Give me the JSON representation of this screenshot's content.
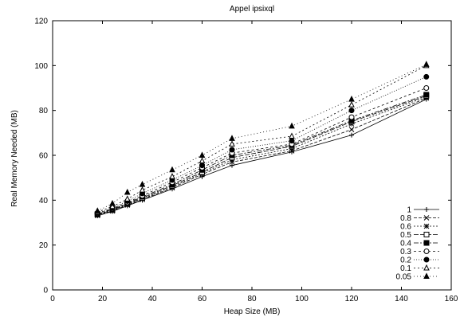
{
  "chart_data": {
    "type": "line",
    "title": "Appel ipsixql",
    "xlabel": "Heap Size (MB)",
    "ylabel": "Real Memory Needed (MB)",
    "xlim": [
      0,
      160
    ],
    "ylim": [
      0,
      120
    ],
    "xticks": [
      0,
      20,
      40,
      60,
      80,
      100,
      120,
      140,
      160
    ],
    "yticks": [
      0,
      20,
      40,
      60,
      80,
      100,
      120
    ],
    "grid": false,
    "legend_position": "bottom-right",
    "x": [
      18,
      24,
      30,
      36,
      48,
      60,
      72,
      96,
      120,
      150
    ],
    "series": [
      {
        "name": "1",
        "marker": "plus",
        "dash": "",
        "values": [
          33.0,
          35.0,
          37.5,
          40.0,
          45.0,
          50.5,
          55.5,
          61.5,
          69.0,
          85.0
        ]
      },
      {
        "name": "0.8",
        "marker": "cross",
        "dash": "4,2",
        "values": [
          33.2,
          35.2,
          37.8,
          40.3,
          45.5,
          51.5,
          57.0,
          62.0,
          71.5,
          85.5
        ]
      },
      {
        "name": "0.6",
        "marker": "star",
        "dash": "2,2",
        "values": [
          33.4,
          35.4,
          38.0,
          40.6,
          46.0,
          52.0,
          58.0,
          63.0,
          74.0,
          86.0
        ]
      },
      {
        "name": "0.5",
        "marker": "square-open",
        "dash": "6,2",
        "values": [
          33.6,
          35.6,
          38.3,
          41.0,
          46.5,
          52.5,
          59.0,
          64.0,
          75.0,
          86.5
        ]
      },
      {
        "name": "0.4",
        "marker": "square-filled",
        "dash": "6,2,2,2",
        "values": [
          33.8,
          35.9,
          38.6,
          41.5,
          47.0,
          53.5,
          60.0,
          64.5,
          75.5,
          87.0
        ]
      },
      {
        "name": "0.3",
        "marker": "circle-open",
        "dash": "3,3",
        "values": [
          34.0,
          36.2,
          39.0,
          42.0,
          48.0,
          54.5,
          61.0,
          65.0,
          77.0,
          90.0
        ]
      },
      {
        "name": "0.2",
        "marker": "circle-filled",
        "dash": "1,2",
        "values": [
          34.3,
          36.6,
          39.6,
          43.0,
          49.0,
          55.5,
          62.5,
          66.5,
          80.0,
          95.0
        ]
      },
      {
        "name": "0.1",
        "marker": "triangle-open",
        "dash": "2,3",
        "values": [
          34.7,
          37.2,
          40.5,
          44.5,
          50.5,
          57.5,
          65.0,
          68.5,
          82.5,
          100.0
        ]
      },
      {
        "name": "0.05",
        "marker": "triangle-filled",
        "dash": "1,3",
        "values": [
          35.2,
          38.5,
          43.5,
          47.0,
          53.5,
          60.0,
          67.5,
          73.0,
          85.0,
          100.5
        ]
      }
    ]
  }
}
